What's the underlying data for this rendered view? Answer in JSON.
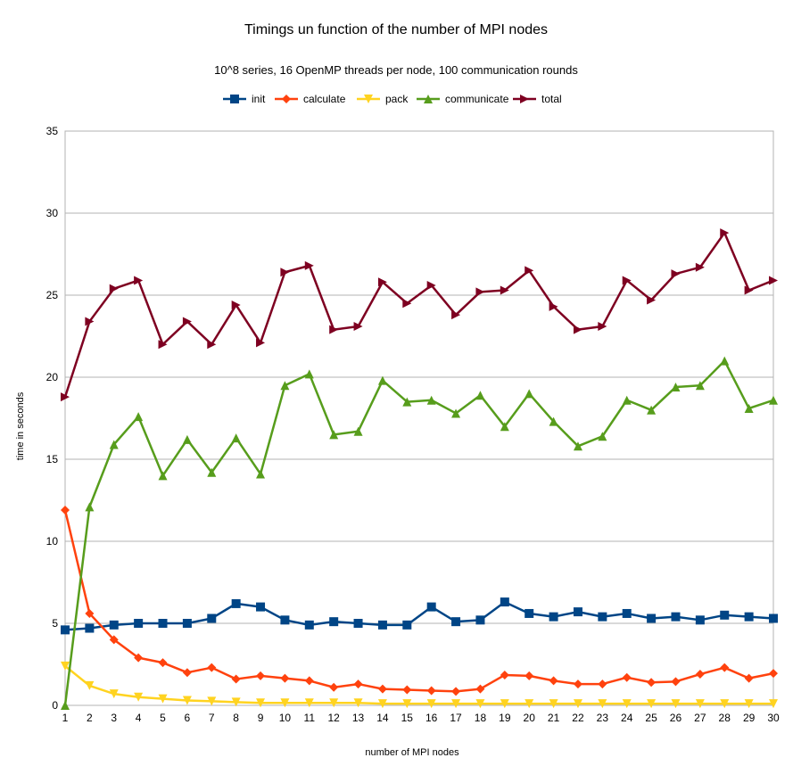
{
  "chart_data": {
    "type": "line",
    "title": "Timings un function of the number of MPI nodes",
    "subtitle": "10^8 series, 16 OpenMP threads per node, 100 communication rounds",
    "xlabel": "number of MPI nodes",
    "ylabel": "time in seconds",
    "ylim": [
      0,
      35
    ],
    "yticks": [
      0,
      5,
      10,
      15,
      20,
      25,
      30,
      35
    ],
    "grid": "horizontal",
    "legend_position": "top",
    "x": [
      1,
      2,
      3,
      4,
      5,
      6,
      7,
      8,
      9,
      10,
      11,
      12,
      13,
      14,
      15,
      16,
      17,
      18,
      19,
      20,
      21,
      22,
      23,
      24,
      25,
      26,
      27,
      28,
      29,
      30
    ],
    "series": [
      {
        "name": "init",
        "color": "#004586",
        "marker": "square",
        "values": [
          4.6,
          4.7,
          4.9,
          5.0,
          5.0,
          5.0,
          5.3,
          6.2,
          6.0,
          5.2,
          4.9,
          5.1,
          5.0,
          4.9,
          4.9,
          6.0,
          5.1,
          5.2,
          6.3,
          5.6,
          5.4,
          5.7,
          5.4,
          5.6,
          5.3,
          5.4,
          5.2,
          5.5,
          5.4,
          5.3
        ]
      },
      {
        "name": "calculate",
        "color": "#ff420e",
        "marker": "diamond",
        "values": [
          11.9,
          5.6,
          4.0,
          2.9,
          2.6,
          2.0,
          2.3,
          1.6,
          1.8,
          1.65,
          1.5,
          1.1,
          1.3,
          1.0,
          0.95,
          0.9,
          0.85,
          1.0,
          1.85,
          1.8,
          1.5,
          1.3,
          1.3,
          1.7,
          1.4,
          1.45,
          1.9,
          2.3,
          1.65,
          1.95
        ]
      },
      {
        "name": "pack",
        "color": "#ffd320",
        "marker": "triangle-down",
        "values": [
          2.4,
          1.2,
          0.7,
          0.5,
          0.4,
          0.3,
          0.25,
          0.2,
          0.15,
          0.15,
          0.15,
          0.15,
          0.15,
          0.1,
          0.1,
          0.1,
          0.1,
          0.1,
          0.1,
          0.1,
          0.1,
          0.1,
          0.1,
          0.1,
          0.1,
          0.1,
          0.1,
          0.1,
          0.1,
          0.1
        ]
      },
      {
        "name": "communicate",
        "color": "#579d1c",
        "marker": "triangle-up",
        "values": [
          0.0,
          12.1,
          15.9,
          17.6,
          14.0,
          16.2,
          14.2,
          16.3,
          14.1,
          19.5,
          20.2,
          16.5,
          16.7,
          19.8,
          18.5,
          18.6,
          17.8,
          18.9,
          17.0,
          19.0,
          17.3,
          15.8,
          16.4,
          18.6,
          18.0,
          19.4,
          19.5,
          21.0,
          18.1,
          18.6
        ]
      },
      {
        "name": "total",
        "color": "#7e0021",
        "marker": "triangle-right",
        "values": [
          18.8,
          23.4,
          25.4,
          25.9,
          22.0,
          23.4,
          22.0,
          24.4,
          22.1,
          26.4,
          26.8,
          22.9,
          23.1,
          25.8,
          24.5,
          25.6,
          23.8,
          25.2,
          25.3,
          26.5,
          24.3,
          22.9,
          23.1,
          25.9,
          24.7,
          26.3,
          26.7,
          28.8,
          25.3,
          25.9
        ]
      }
    ]
  }
}
